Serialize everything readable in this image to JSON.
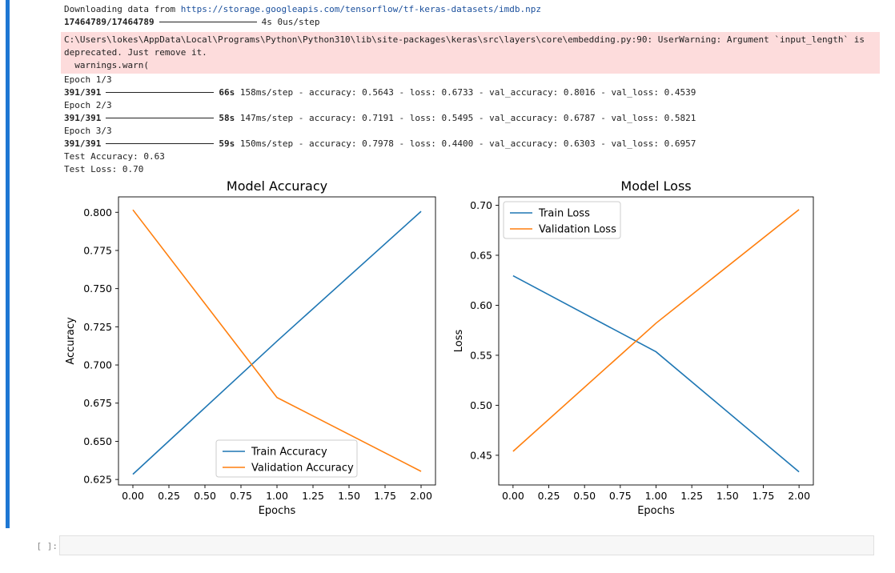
{
  "output": {
    "download_prefix": "Downloading data from ",
    "download_url": "https://storage.googleapis.com/tensorflow/tf-keras-datasets/imdb.npz",
    "download_progress": "17464789/17464789",
    "download_time": "4s 0us/step",
    "warning_text": "C:\\Users\\lokes\\AppData\\Local\\Programs\\Python\\Python310\\lib\\site-packages\\keras\\src\\layers\\core\\embedding.py:90: UserWarning: Argument `input_length` is deprecated. Just remove it.",
    "warning_call": "  warnings.warn(",
    "epochs": [
      {
        "label": "Epoch 1/3",
        "steps": "391/391",
        "time": "66s",
        "rest": "158ms/step - accuracy: 0.5643 - loss: 0.6733 - val_accuracy: 0.8016 - val_loss: 0.4539"
      },
      {
        "label": "Epoch 2/3",
        "steps": "391/391",
        "time": "58s",
        "rest": "147ms/step - accuracy: 0.7191 - loss: 0.5495 - val_accuracy: 0.6787 - val_loss: 0.5821"
      },
      {
        "label": "Epoch 3/3",
        "steps": "391/391",
        "time": "59s",
        "rest": "150ms/step - accuracy: 0.7978 - loss: 0.4400 - val_accuracy: 0.6303 - val_loss: 0.6957"
      }
    ],
    "test_accuracy": "Test Accuracy: 0.63",
    "test_loss": "Test Loss: 0.70"
  },
  "chart_data": [
    {
      "type": "line",
      "title": "Model Accuracy",
      "xlabel": "Epochs",
      "ylabel": "Accuracy",
      "x": [
        0,
        1,
        2
      ],
      "xlim": [
        -0.1,
        2.1
      ],
      "ylim": [
        0.6214,
        0.8101
      ],
      "xticks": [
        0.0,
        0.25,
        0.5,
        0.75,
        1.0,
        1.25,
        1.5,
        1.75,
        2.0
      ],
      "xtick_labels": [
        "0.00",
        "0.25",
        "0.50",
        "0.75",
        "1.00",
        "1.25",
        "1.50",
        "1.75",
        "2.00"
      ],
      "yticks": [
        0.625,
        0.65,
        0.675,
        0.7,
        0.725,
        0.75,
        0.775,
        0.8
      ],
      "ytick_labels": [
        "0.625",
        "0.650",
        "0.675",
        "0.700",
        "0.725",
        "0.750",
        "0.775",
        "0.800"
      ],
      "legend_position": "lower-center",
      "series": [
        {
          "name": "Train Accuracy",
          "values": [
            0.6284,
            0.7156,
            0.8006
          ],
          "color": "#1f77b4"
        },
        {
          "name": "Validation Accuracy",
          "values": [
            0.8016,
            0.6787,
            0.6303
          ],
          "color": "#ff7f0e"
        }
      ]
    },
    {
      "type": "line",
      "title": "Model Loss",
      "xlabel": "Epochs",
      "ylabel": "Loss",
      "x": [
        0,
        1,
        2
      ],
      "xlim": [
        -0.1,
        2.1
      ],
      "ylim": [
        0.4203,
        0.7084
      ],
      "xticks": [
        0.0,
        0.25,
        0.5,
        0.75,
        1.0,
        1.25,
        1.5,
        1.75,
        2.0
      ],
      "xtick_labels": [
        "0.00",
        "0.25",
        "0.50",
        "0.75",
        "1.00",
        "1.25",
        "1.50",
        "1.75",
        "2.00"
      ],
      "yticks": [
        0.45,
        0.5,
        0.55,
        0.6,
        0.65,
        0.7
      ],
      "ytick_labels": [
        "0.45",
        "0.50",
        "0.55",
        "0.60",
        "0.65",
        "0.70"
      ],
      "legend_position": "upper-left",
      "series": [
        {
          "name": "Train Loss",
          "values": [
            0.6295,
            0.5535,
            0.4334
          ],
          "color": "#1f77b4"
        },
        {
          "name": "Validation Loss",
          "values": [
            0.4539,
            0.5821,
            0.6957
          ],
          "color": "#ff7f0e"
        }
      ]
    }
  ],
  "next_cell": {
    "prompt": "[ ]:",
    "value": ""
  }
}
